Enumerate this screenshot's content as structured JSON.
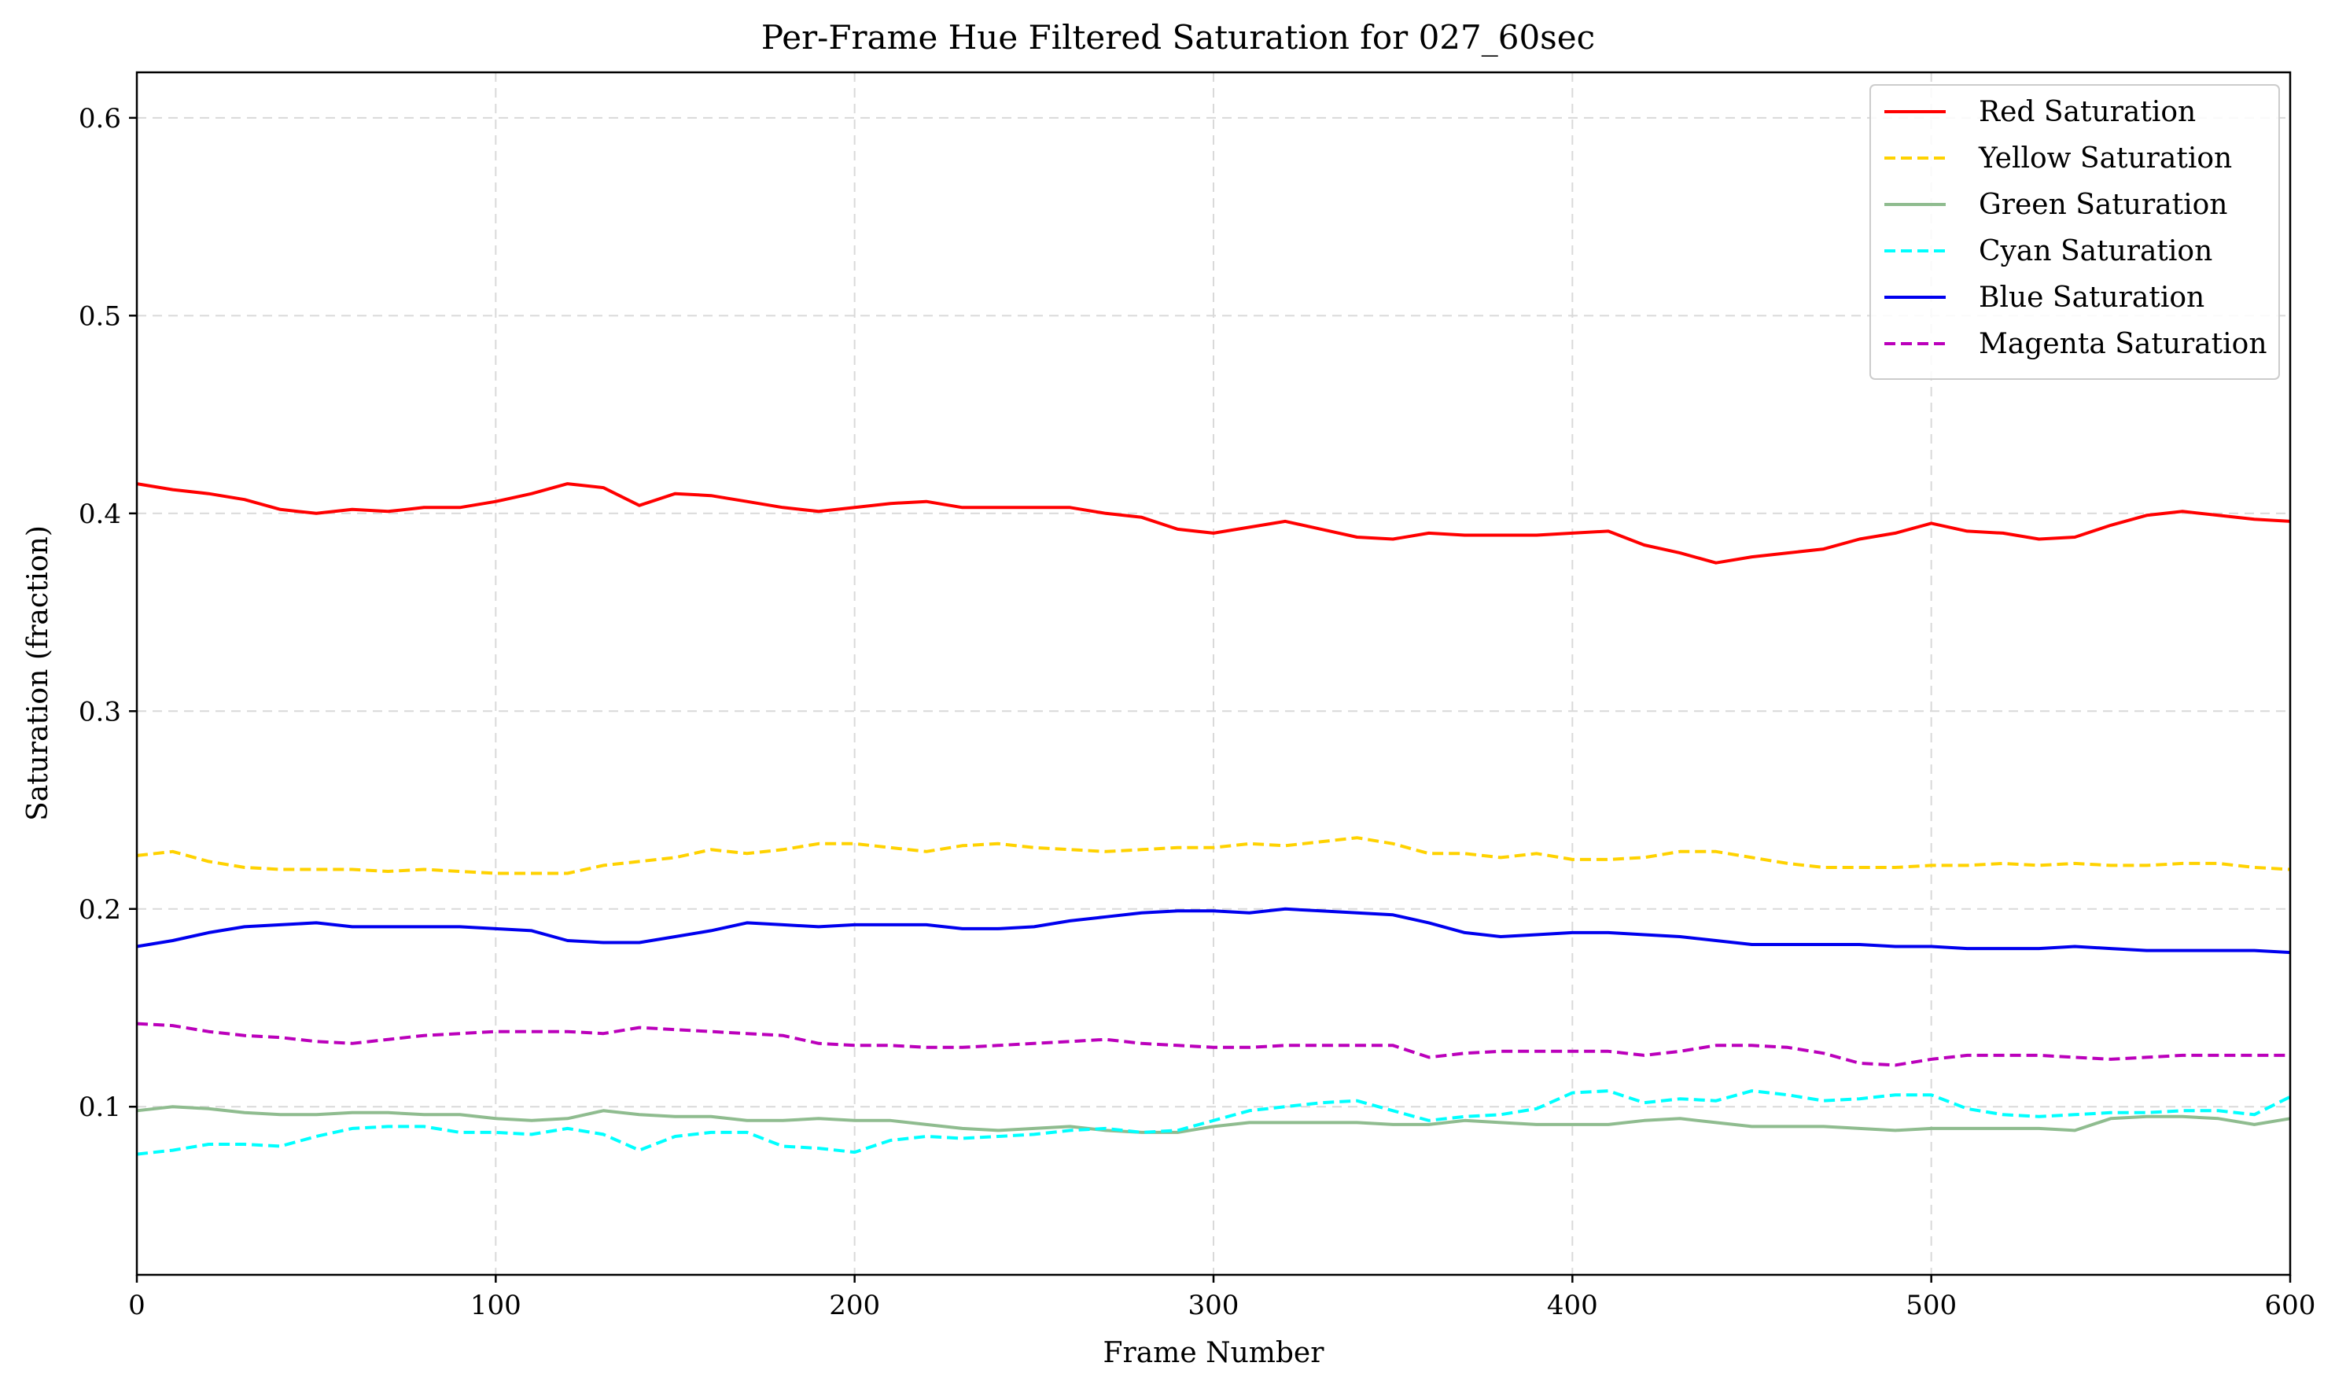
{
  "chart_data": {
    "type": "line",
    "title": "Per-Frame Hue Filtered Saturation for 027_60sec",
    "xlabel": "Frame Number",
    "ylabel": "Saturation (fraction)",
    "xlim": [
      0,
      600
    ],
    "ylim": [
      0.015,
      0.623
    ],
    "xticks": [
      0,
      100,
      200,
      300,
      400,
      500,
      600
    ],
    "yticks": [
      0.1,
      0.2,
      0.3,
      0.4,
      0.5,
      0.6
    ],
    "grid": true,
    "legend_position": "top-right",
    "x": [
      0,
      10,
      20,
      30,
      40,
      50,
      60,
      70,
      80,
      90,
      100,
      110,
      120,
      130,
      140,
      150,
      160,
      170,
      180,
      190,
      200,
      210,
      220,
      230,
      240,
      250,
      260,
      270,
      280,
      290,
      300,
      310,
      320,
      330,
      340,
      350,
      360,
      370,
      380,
      390,
      400,
      410,
      420,
      430,
      440,
      450,
      460,
      470,
      480,
      490,
      500,
      510,
      520,
      530,
      540,
      550,
      560,
      570,
      580,
      590,
      600
    ],
    "series": [
      {
        "name": "Red Saturation",
        "color": "#ff0000",
        "dash": "solid",
        "values": [
          0.415,
          0.412,
          0.41,
          0.407,
          0.402,
          0.4,
          0.402,
          0.401,
          0.403,
          0.403,
          0.406,
          0.41,
          0.415,
          0.413,
          0.404,
          0.41,
          0.409,
          0.406,
          0.403,
          0.401,
          0.403,
          0.405,
          0.406,
          0.403,
          0.403,
          0.403,
          0.403,
          0.4,
          0.398,
          0.392,
          0.39,
          0.393,
          0.396,
          0.392,
          0.388,
          0.387,
          0.39,
          0.389,
          0.389,
          0.389,
          0.39,
          0.391,
          0.384,
          0.38,
          0.375,
          0.378,
          0.38,
          0.382,
          0.387,
          0.39,
          0.395,
          0.391,
          0.39,
          0.387,
          0.388,
          0.394,
          0.399,
          0.401,
          0.399,
          0.397,
          0.396
        ]
      },
      {
        "name": "Yellow Saturation",
        "color": "#ffd200",
        "dash": "dashed",
        "values": [
          0.227,
          0.229,
          0.224,
          0.221,
          0.22,
          0.22,
          0.22,
          0.219,
          0.22,
          0.219,
          0.218,
          0.218,
          0.218,
          0.222,
          0.224,
          0.226,
          0.23,
          0.228,
          0.23,
          0.233,
          0.233,
          0.231,
          0.229,
          0.232,
          0.233,
          0.231,
          0.23,
          0.229,
          0.23,
          0.231,
          0.231,
          0.233,
          0.232,
          0.234,
          0.236,
          0.233,
          0.228,
          0.228,
          0.226,
          0.228,
          0.225,
          0.225,
          0.226,
          0.229,
          0.229,
          0.226,
          0.223,
          0.221,
          0.221,
          0.221,
          0.222,
          0.222,
          0.223,
          0.222,
          0.223,
          0.222,
          0.222,
          0.223,
          0.223,
          0.221,
          0.22
        ]
      },
      {
        "name": "Green Saturation",
        "color": "#8fbc8f",
        "dash": "solid",
        "values": [
          0.098,
          0.1,
          0.099,
          0.097,
          0.096,
          0.096,
          0.097,
          0.097,
          0.096,
          0.096,
          0.094,
          0.093,
          0.094,
          0.098,
          0.096,
          0.095,
          0.095,
          0.093,
          0.093,
          0.094,
          0.093,
          0.093,
          0.091,
          0.089,
          0.088,
          0.089,
          0.09,
          0.088,
          0.087,
          0.087,
          0.09,
          0.092,
          0.092,
          0.092,
          0.092,
          0.091,
          0.091,
          0.093,
          0.092,
          0.091,
          0.091,
          0.091,
          0.093,
          0.094,
          0.092,
          0.09,
          0.09,
          0.09,
          0.089,
          0.088,
          0.089,
          0.089,
          0.089,
          0.089,
          0.088,
          0.094,
          0.095,
          0.095,
          0.094,
          0.091,
          0.094
        ]
      },
      {
        "name": "Cyan Saturation",
        "color": "#00ffff",
        "dash": "dashed",
        "values": [
          0.076,
          0.078,
          0.081,
          0.081,
          0.08,
          0.085,
          0.089,
          0.09,
          0.09,
          0.087,
          0.087,
          0.086,
          0.089,
          0.086,
          0.078,
          0.085,
          0.087,
          0.087,
          0.08,
          0.079,
          0.077,
          0.083,
          0.085,
          0.084,
          0.085,
          0.086,
          0.088,
          0.089,
          0.087,
          0.088,
          0.093,
          0.098,
          0.1,
          0.102,
          0.103,
          0.098,
          0.093,
          0.095,
          0.096,
          0.099,
          0.107,
          0.108,
          0.102,
          0.104,
          0.103,
          0.108,
          0.106,
          0.103,
          0.104,
          0.106,
          0.106,
          0.099,
          0.096,
          0.095,
          0.096,
          0.097,
          0.097,
          0.098,
          0.098,
          0.096,
          0.105
        ]
      },
      {
        "name": "Blue Saturation",
        "color": "#0000ee",
        "dash": "solid",
        "values": [
          0.181,
          0.184,
          0.188,
          0.191,
          0.192,
          0.193,
          0.191,
          0.191,
          0.191,
          0.191,
          0.19,
          0.189,
          0.184,
          0.183,
          0.183,
          0.186,
          0.189,
          0.193,
          0.192,
          0.191,
          0.192,
          0.192,
          0.192,
          0.19,
          0.19,
          0.191,
          0.194,
          0.196,
          0.198,
          0.199,
          0.199,
          0.198,
          0.2,
          0.199,
          0.198,
          0.197,
          0.193,
          0.188,
          0.186,
          0.187,
          0.188,
          0.188,
          0.187,
          0.186,
          0.184,
          0.182,
          0.182,
          0.182,
          0.182,
          0.181,
          0.181,
          0.18,
          0.18,
          0.18,
          0.181,
          0.18,
          0.179,
          0.179,
          0.179,
          0.179,
          0.178
        ]
      },
      {
        "name": "Magenta Saturation",
        "color": "#bb00bb",
        "dash": "dashed",
        "values": [
          0.142,
          0.141,
          0.138,
          0.136,
          0.135,
          0.133,
          0.132,
          0.134,
          0.136,
          0.137,
          0.138,
          0.138,
          0.138,
          0.137,
          0.14,
          0.139,
          0.138,
          0.137,
          0.136,
          0.132,
          0.131,
          0.131,
          0.13,
          0.13,
          0.131,
          0.132,
          0.133,
          0.134,
          0.132,
          0.131,
          0.13,
          0.13,
          0.131,
          0.131,
          0.131,
          0.131,
          0.125,
          0.127,
          0.128,
          0.128,
          0.128,
          0.128,
          0.126,
          0.128,
          0.131,
          0.131,
          0.13,
          0.127,
          0.122,
          0.121,
          0.124,
          0.126,
          0.126,
          0.126,
          0.125,
          0.124,
          0.125,
          0.126,
          0.126,
          0.126,
          0.126
        ]
      }
    ]
  }
}
